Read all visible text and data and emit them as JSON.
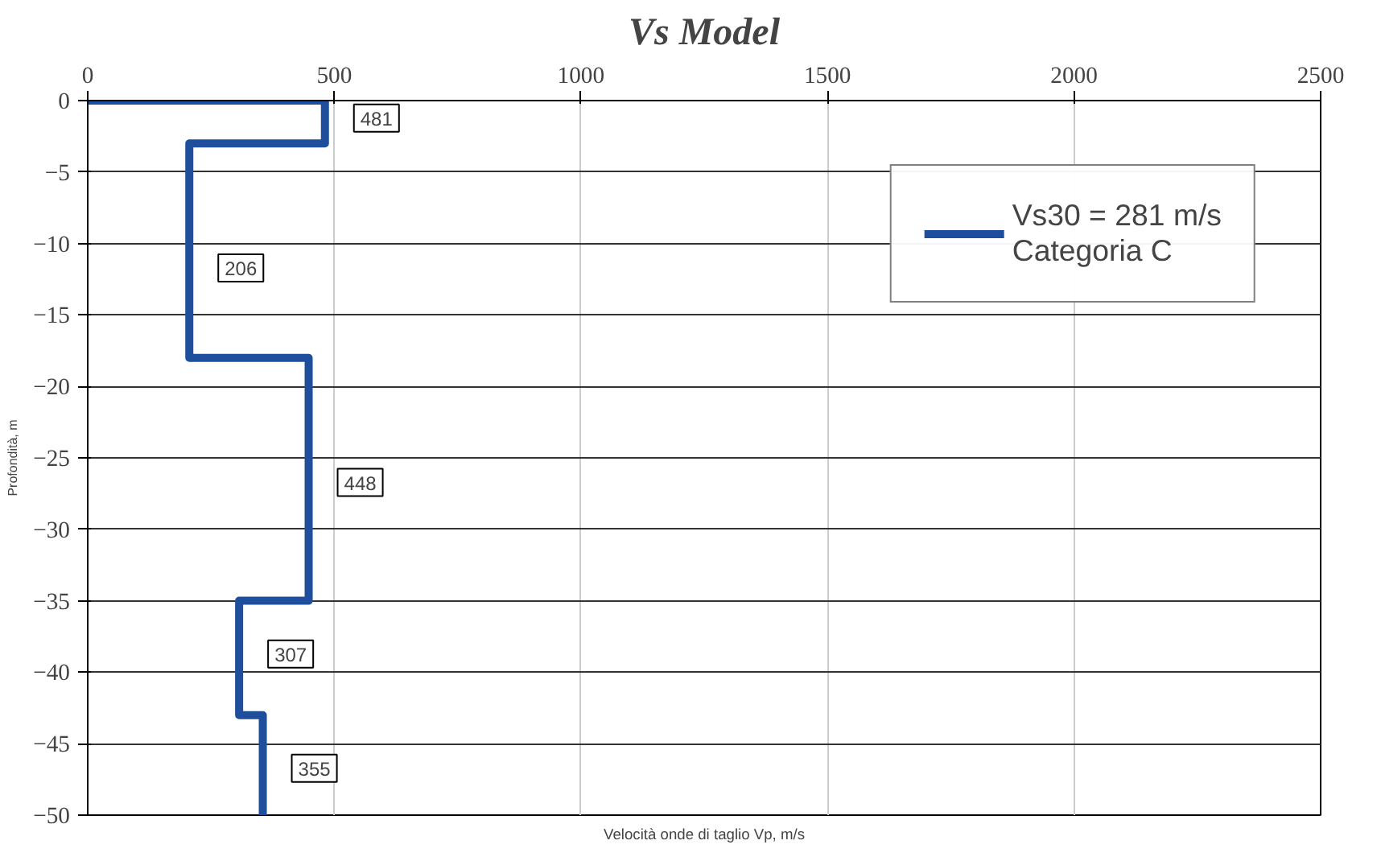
{
  "chart_data": {
    "type": "line",
    "title": "Vs Model",
    "xlabel": "Velocità onde di taglio Vp, m/s",
    "ylabel": "Profondità, m",
    "x": [
      0,
      481,
      481,
      206,
      206,
      448,
      448,
      307,
      307,
      355,
      355
    ],
    "series": [
      {
        "name": "Vs30 = 281 m/s\nCategoria C",
        "color": "#1f4e9c",
        "values": [
          0,
          0,
          -3,
          -3,
          -18,
          -18,
          -35,
          -35,
          -43,
          -43,
          -50
        ]
      }
    ],
    "annotations": [
      {
        "text": "481",
        "x": 481,
        "y": -1.5
      },
      {
        "text": "206",
        "x": 206,
        "y": -12
      },
      {
        "text": "448",
        "x": 448,
        "y": -27
      },
      {
        "text": "307",
        "x": 307,
        "y": -39
      },
      {
        "text": "355",
        "x": 355,
        "y": -47
      }
    ],
    "xlim": [
      0,
      2500
    ],
    "xticks": [
      0,
      500,
      1000,
      1500,
      2000,
      2500
    ],
    "ylim": [
      -50,
      0
    ],
    "yticks": [
      0,
      -5,
      -10,
      -15,
      -20,
      -25,
      -30,
      -35,
      -40,
      -45,
      -50
    ],
    "grid": true,
    "legend": "top right",
    "marker": "none",
    "line_style": "solid"
  }
}
